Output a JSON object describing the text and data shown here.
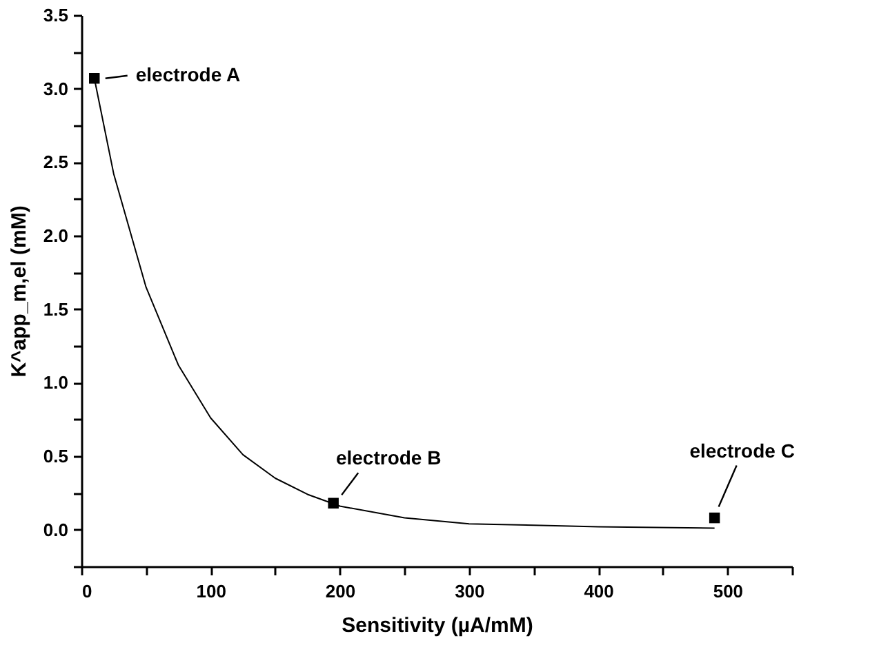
{
  "chart_data": {
    "type": "scatter",
    "xlabel": "Sensitivity (µA/mM)",
    "ylabel": "K^app_m,el (mM)",
    "series": [
      {
        "color": "#000000",
        "marker": "square",
        "x": [
          10,
          195,
          490
        ],
        "values": [
          3.07,
          0.18,
          0.08
        ]
      },
      {
        "type": "line",
        "color": "#000000",
        "line_style": "solid",
        "x": [
          10,
          25,
          50,
          75,
          100,
          125,
          150,
          175,
          200,
          250,
          300,
          350,
          400,
          490
        ],
        "values": [
          3.07,
          2.42,
          1.65,
          1.12,
          0.76,
          0.51,
          0.35,
          0.24,
          0.16,
          0.08,
          0.04,
          0.03,
          0.02,
          0.01
        ]
      }
    ],
    "xlim": [
      0,
      550
    ],
    "ylim": [
      -0.25,
      3.5
    ],
    "xticks": [
      0,
      {
        "value": 50,
        "label": null
      },
      100,
      {
        "value": 150,
        "label": null
      },
      200,
      {
        "value": 250,
        "label": null
      },
      300,
      {
        "value": 350,
        "label": null
      },
      400,
      {
        "value": 450,
        "label": null
      },
      500,
      {
        "value": 550,
        "label": null
      }
    ],
    "yticks": [
      {
        "value": -0.25,
        "label": null
      },
      {
        "value": 0,
        "label": "0.0"
      },
      {
        "value": 0.25,
        "label": null
      },
      0.5,
      {
        "value": 0.75,
        "label": null
      },
      {
        "value": 1,
        "label": "1.0"
      },
      {
        "value": 1.25,
        "label": null
      },
      1.5,
      {
        "value": 1.75,
        "label": null
      },
      {
        "value": 2,
        "label": "2.0"
      },
      {
        "value": 2.25,
        "label": null
      },
      2.5,
      {
        "value": 2.75,
        "label": null
      },
      {
        "value": 3,
        "label": "3.0"
      },
      {
        "value": 3.25,
        "label": null
      },
      3.5
    ],
    "annotations": [
      {
        "text": "electrode A",
        "x": 10,
        "y": 3.07
      },
      {
        "text": "electrode B",
        "x": 195,
        "y": 0.18
      },
      {
        "text": "electrode C",
        "x": 490,
        "y": 0.08
      }
    ],
    "grid": false
  }
}
